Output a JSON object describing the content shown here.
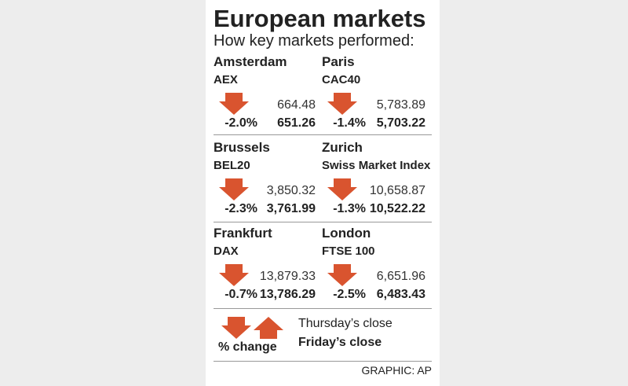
{
  "header": {
    "title": "European markets",
    "subtitle": "How key markets performed:"
  },
  "markets": [
    {
      "city": "Amsterdam",
      "index": "AEX",
      "previous": "664.48",
      "change": "-2.0%",
      "close": "651.26"
    },
    {
      "city": "Paris",
      "index": "CAC40",
      "previous": "5,783.89",
      "change": "-1.4%",
      "close": "5,703.22"
    },
    {
      "city": "Brussels",
      "index": "BEL20",
      "previous": "3,850.32",
      "change": "-2.3%",
      "close": "3,761.99"
    },
    {
      "city": "Zurich",
      "index": "Swiss Market Index",
      "previous": "10,658.87",
      "change": "-1.3%",
      "close": "10,522.22"
    },
    {
      "city": "Frankfurt",
      "index": "DAX",
      "previous": "13,879.33",
      "change": "-0.7%",
      "close": "13,786.29"
    },
    {
      "city": "London",
      "index": "FTSE 100",
      "previous": "6,651.96",
      "change": "-2.5%",
      "close": "6,483.43"
    }
  ],
  "legend": {
    "change": "% change",
    "previous": "Thursday’s close",
    "close": "Friday’s close"
  },
  "credit": "GRAPHIC: AP"
}
